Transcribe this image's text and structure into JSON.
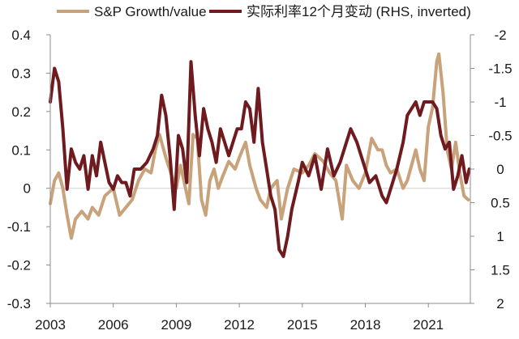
{
  "chart_data": {
    "type": "line",
    "title": "",
    "xlabel": "",
    "ylabel": "",
    "y2label": "",
    "x_ticks": [
      2003,
      2006,
      2009,
      2012,
      2015,
      2018,
      2021
    ],
    "xlim": [
      2003,
      2023
    ],
    "ylim": [
      -0.3,
      0.4
    ],
    "y_ticks": [
      -0.3,
      -0.2,
      -0.1,
      0,
      0.1,
      0.2,
      0.3,
      0.4
    ],
    "y_tick_labels": [
      "-0.3",
      "-0.2",
      "-0.1",
      "0",
      "0.1",
      "0.2",
      "0.3",
      "0.4"
    ],
    "y2lim_top": -2,
    "y2lim_bottom": 2,
    "y2_inverted": true,
    "y2_ticks": [
      -2,
      -1.5,
      -1,
      -0.5,
      0,
      0.5,
      1,
      1.5,
      2
    ],
    "y2_tick_labels": [
      "-2",
      "-1.5",
      "-1",
      "-0.5",
      "0",
      "0.5",
      "1",
      "1.5",
      "2"
    ],
    "grid": false,
    "legend_position": "top",
    "series": [
      {
        "name": "S&P Growth/value",
        "axis": "left",
        "color": "#c8a27a",
        "x": [
          2003.0,
          2003.2,
          2003.4,
          2003.6,
          2003.8,
          2004.0,
          2004.2,
          2004.5,
          2004.8,
          2005.0,
          2005.3,
          2005.6,
          2006.0,
          2006.3,
          2006.6,
          2006.9,
          2007.2,
          2007.5,
          2007.8,
          2008.0,
          2008.2,
          2008.5,
          2008.8,
          2009.0,
          2009.2,
          2009.4,
          2009.6,
          2009.8,
          2010.0,
          2010.2,
          2010.4,
          2010.6,
          2010.8,
          2011.0,
          2011.2,
          2011.5,
          2011.8,
          2012.0,
          2012.3,
          2012.5,
          2012.8,
          2013.0,
          2013.3,
          2013.5,
          2013.8,
          2014.0,
          2014.3,
          2014.6,
          2015.0,
          2015.3,
          2015.6,
          2016.0,
          2016.3,
          2016.6,
          2016.9,
          2017.1,
          2017.4,
          2017.7,
          2018.0,
          2018.3,
          2018.6,
          2018.8,
          2019.0,
          2019.2,
          2019.5,
          2019.8,
          2020.0,
          2020.2,
          2020.4,
          2020.6,
          2020.8,
          2021.0,
          2021.2,
          2021.4,
          2021.5,
          2021.7,
          2021.9,
          2022.1,
          2022.3,
          2022.5,
          2022.7,
          2022.9
        ],
        "values": [
          -0.04,
          0.02,
          0.04,
          0.0,
          -0.07,
          -0.13,
          -0.08,
          -0.06,
          -0.08,
          -0.05,
          -0.07,
          -0.02,
          0.0,
          -0.07,
          -0.05,
          -0.03,
          0.02,
          0.05,
          0.04,
          0.1,
          0.14,
          0.08,
          0.03,
          0.0,
          0.06,
          0.01,
          -0.04,
          0.14,
          0.13,
          -0.03,
          -0.07,
          0.02,
          0.05,
          0.0,
          0.03,
          0.07,
          0.05,
          0.08,
          0.12,
          0.06,
          0.0,
          -0.03,
          -0.05,
          0.0,
          0.02,
          -0.08,
          0.0,
          0.05,
          0.04,
          0.06,
          0.09,
          0.07,
          0.04,
          0.02,
          -0.08,
          0.06,
          0.02,
          0.0,
          0.04,
          0.13,
          0.1,
          0.1,
          0.06,
          0.04,
          0.05,
          0.0,
          0.02,
          0.06,
          0.1,
          0.05,
          0.02,
          0.16,
          0.21,
          0.33,
          0.35,
          0.25,
          0.1,
          0.05,
          0.12,
          0.04,
          -0.02,
          -0.03
        ]
      },
      {
        "name": "实际利率12个月变动 (RHS, inverted)",
        "axis": "right",
        "inverted": true,
        "color": "#6e1a1f",
        "x": [
          2003.0,
          2003.2,
          2003.4,
          2003.6,
          2003.8,
          2004.0,
          2004.2,
          2004.4,
          2004.6,
          2004.8,
          2005.0,
          2005.2,
          2005.4,
          2005.6,
          2005.8,
          2006.0,
          2006.2,
          2006.4,
          2006.6,
          2006.8,
          2007.0,
          2007.3,
          2007.6,
          2007.9,
          2008.1,
          2008.3,
          2008.5,
          2008.7,
          2008.9,
          2009.1,
          2009.3,
          2009.5,
          2009.7,
          2009.9,
          2010.1,
          2010.3,
          2010.5,
          2010.7,
          2010.9,
          2011.1,
          2011.3,
          2011.5,
          2011.7,
          2011.9,
          2012.1,
          2012.3,
          2012.5,
          2012.7,
          2012.9,
          2013.1,
          2013.3,
          2013.5,
          2013.7,
          2013.9,
          2014.1,
          2014.3,
          2014.5,
          2014.8,
          2015.0,
          2015.3,
          2015.6,
          2015.9,
          2016.2,
          2016.5,
          2016.8,
          2017.0,
          2017.3,
          2017.6,
          2017.9,
          2018.2,
          2018.5,
          2018.8,
          2019.0,
          2019.2,
          2019.5,
          2019.8,
          2020.0,
          2020.2,
          2020.4,
          2020.6,
          2020.8,
          2021.0,
          2021.2,
          2021.4,
          2021.6,
          2021.8,
          2022.0,
          2022.2,
          2022.4,
          2022.6,
          2022.8,
          2022.95
        ],
        "values": [
          -1.0,
          -1.5,
          -1.3,
          -0.6,
          0.3,
          -0.3,
          -0.1,
          0.0,
          -0.2,
          0.3,
          -0.2,
          0.1,
          -0.4,
          -0.1,
          0.2,
          0.3,
          0.1,
          0.2,
          0.2,
          0.4,
          0.0,
          0.0,
          -0.1,
          -0.3,
          -0.5,
          -1.1,
          -0.8,
          -0.2,
          0.6,
          -0.5,
          -0.3,
          0.2,
          -1.6,
          -0.8,
          -0.2,
          -0.9,
          -0.6,
          -0.4,
          -0.1,
          -0.6,
          -0.4,
          -0.2,
          -0.4,
          -0.6,
          -0.6,
          -1.0,
          -0.9,
          -0.4,
          -1.2,
          -0.4,
          0.0,
          0.4,
          0.6,
          1.2,
          1.3,
          1.0,
          0.6,
          0.2,
          -0.1,
          0.1,
          -0.2,
          0.3,
          -0.3,
          0.1,
          -0.1,
          -0.3,
          -0.6,
          -0.4,
          -0.1,
          0.2,
          0.1,
          0.4,
          0.5,
          0.3,
          0.0,
          -0.4,
          -0.8,
          -0.9,
          -1.0,
          -0.8,
          -1.0,
          -1.0,
          -1.0,
          -0.9,
          -0.5,
          -0.3,
          -0.4,
          0.3,
          0.1,
          -0.2,
          0.2,
          0.0
        ]
      }
    ]
  }
}
